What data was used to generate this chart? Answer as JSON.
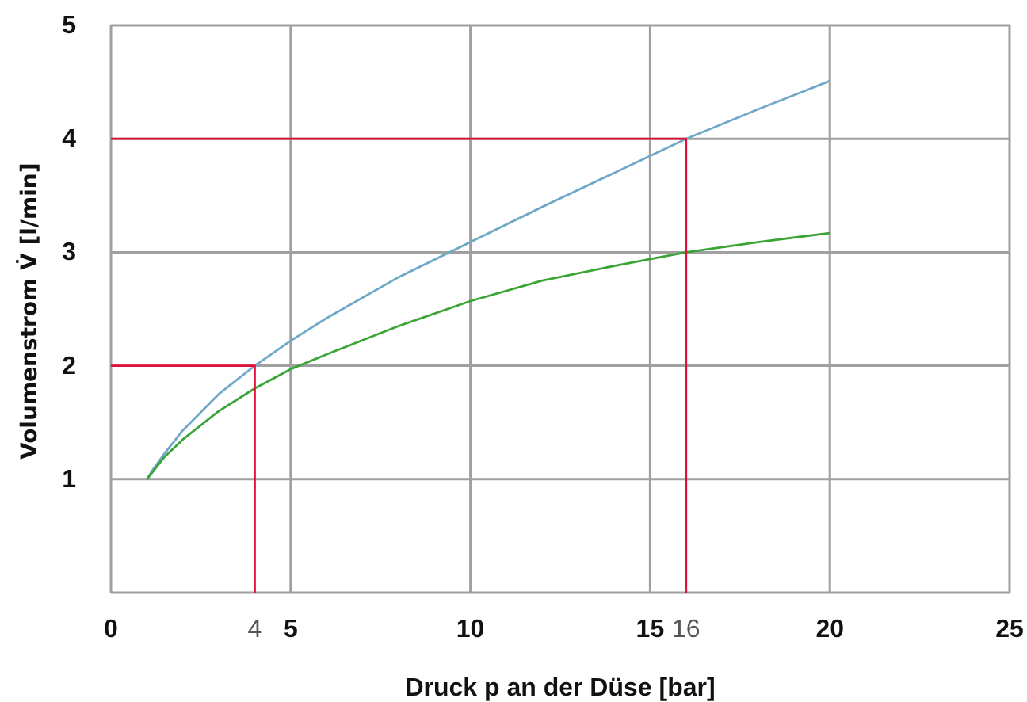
{
  "chart_data": {
    "type": "line",
    "xlabel": "Druck p an der Düse [bar]",
    "ylabel": "Volumenstrom V̇ [l/min]",
    "xlim": [
      0,
      25
    ],
    "ylim": [
      0,
      5
    ],
    "xticks": [
      0,
      {
        "value": 4,
        "label": "4"
      },
      5,
      10,
      15,
      {
        "value": 16,
        "label": "16"
      },
      20,
      25
    ],
    "yticks": [
      {
        "value": 0,
        "label": null
      },
      1,
      2,
      3,
      4,
      5
    ],
    "grid": true,
    "series": [
      {
        "color": "#6fa8c8",
        "x": [
          1,
          1.2,
          1.5,
          2,
          3,
          4,
          5,
          6,
          8,
          10,
          12,
          14,
          16,
          18,
          20
        ],
        "values": [
          1,
          1.1,
          1.23,
          1.43,
          1.75,
          2.0,
          2.22,
          2.42,
          2.78,
          3.09,
          3.4,
          3.7,
          4.0,
          4.26,
          4.51
        ]
      },
      {
        "color": "#3aa535",
        "x": [
          1,
          1.2,
          1.5,
          2,
          3,
          4,
          5,
          6,
          8,
          10,
          12,
          14,
          16,
          18,
          20
        ],
        "values": [
          1,
          1.08,
          1.2,
          1.35,
          1.6,
          1.8,
          1.97,
          2.1,
          2.35,
          2.57,
          2.75,
          2.88,
          3.0,
          3.09,
          3.17
        ]
      },
      {
        "color": "#e30f3a",
        "x": [
          0,
          4,
          4
        ],
        "values": [
          2,
          2,
          0
        ]
      },
      {
        "color": "#e30f3a",
        "x": [
          0,
          16,
          16
        ],
        "values": [
          4,
          4,
          0
        ]
      }
    ]
  }
}
